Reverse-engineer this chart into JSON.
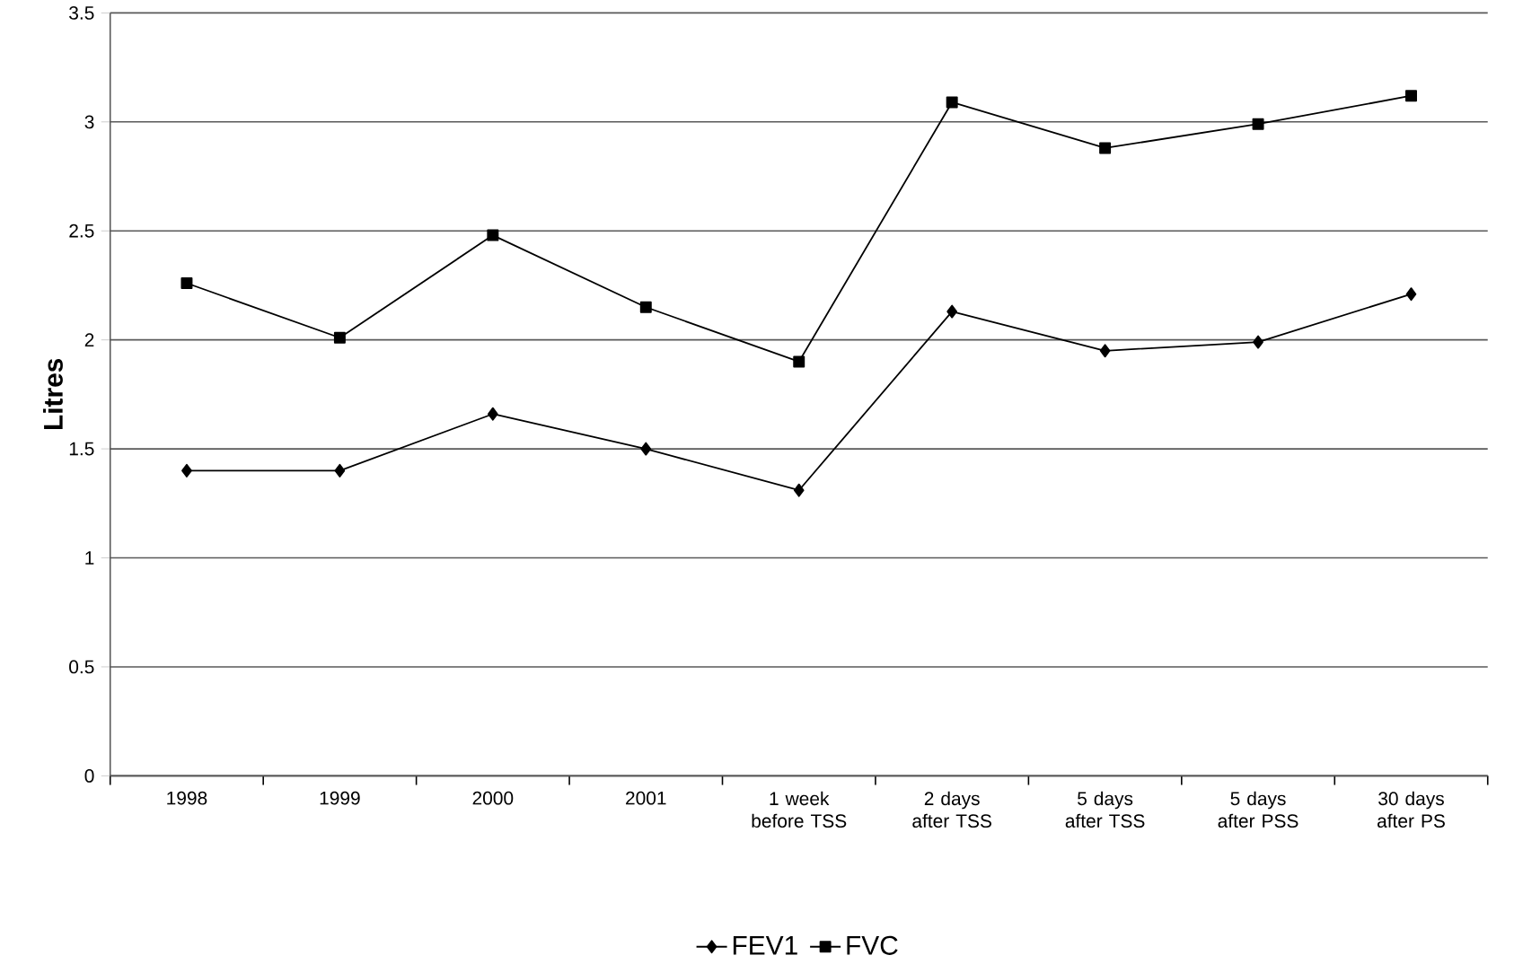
{
  "chart_data": {
    "type": "line",
    "ylabel": "Litres",
    "categories": [
      "1998",
      "1999",
      "2000",
      "2001",
      "1 week before TSS",
      "2 days after TSS",
      "5 days after TSS",
      "5 days after PSS",
      "30 days after PS"
    ],
    "series": [
      {
        "name": "FEV1",
        "color": "#000000",
        "marker": "diamond",
        "values": [
          1.4,
          1.4,
          1.66,
          1.5,
          1.31,
          2.13,
          1.95,
          1.99,
          2.21
        ]
      },
      {
        "name": "FVC",
        "color": "#000000",
        "marker": "square",
        "values": [
          2.26,
          2.01,
          2.48,
          2.15,
          1.9,
          3.09,
          2.88,
          2.99,
          3.12
        ]
      }
    ],
    "ylim": [
      0,
      3.5
    ],
    "yticks": [
      0,
      0.5,
      1,
      1.5,
      2,
      2.5,
      3,
      3.5
    ],
    "grid": "y",
    "legend": "bottom",
    "line_style": "solid"
  }
}
